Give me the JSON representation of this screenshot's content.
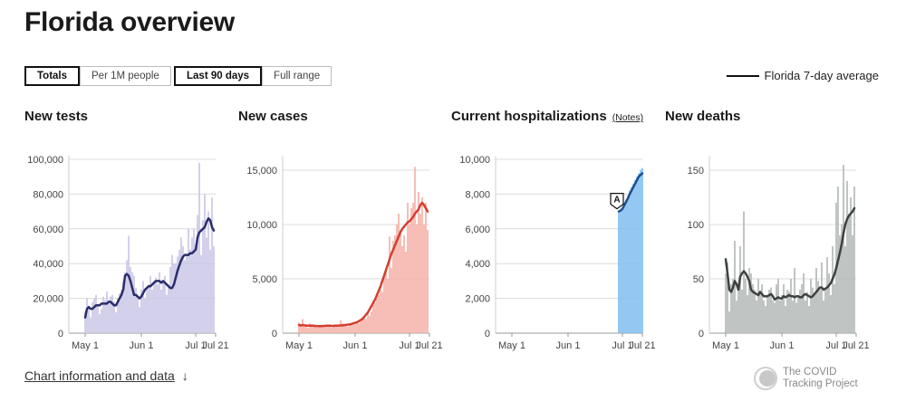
{
  "page": {
    "title": "Florida overview",
    "toggles_metric": [
      "Totals",
      "Per 1M people"
    ],
    "toggles_range": [
      "Last 90 days",
      "Full range"
    ],
    "active_metric": "Totals",
    "active_range": "Last 90 days",
    "legend_label": "Florida 7-day average",
    "chart_info_link": "Chart information and data",
    "chart_info_arrow": "↓",
    "logo_text_line1": "The COVID",
    "logo_text_line2": "Tracking Project",
    "notes_label": "(Notes)",
    "annotation_marker": "A"
  },
  "chart_data": [
    {
      "type": "bar",
      "title": "New tests",
      "color_bars": "#c9c7e6",
      "color_line": "#2b2d6b",
      "x_ticks": [
        "May 1",
        "Jun 1",
        "Jul 1",
        "Jul 21"
      ],
      "y_ticks": [
        "0",
        "20,000",
        "40,000",
        "60,000",
        "80,000",
        "100,000"
      ],
      "ylim": [
        0,
        100000
      ],
      "daily_bars": [
        12000,
        20000,
        15000,
        9000,
        18000,
        20000,
        22000,
        16000,
        11000,
        14000,
        21000,
        19000,
        24000,
        17000,
        21000,
        22000,
        18000,
        12000,
        20000,
        23000,
        25000,
        30000,
        35000,
        42000,
        56000,
        38000,
        35000,
        33000,
        26000,
        20000,
        15000,
        25000,
        30000,
        20000,
        26000,
        28000,
        33000,
        25000,
        30000,
        32000,
        28000,
        35000,
        25000,
        30000,
        33000,
        22000,
        28000,
        38000,
        45000,
        40000,
        40000,
        44000,
        48000,
        55000,
        50000,
        42000,
        45000,
        60000,
        48000,
        55000,
        60000,
        50000,
        68000,
        98000,
        45000,
        65000,
        80000,
        55000,
        70000,
        48000,
        78000,
        50000
      ],
      "avg_line": [
        9000,
        14000,
        15000,
        14000,
        14000,
        15000,
        16000,
        16000,
        16000,
        17000,
        17000,
        17000,
        17000,
        18000,
        18000,
        17000,
        16000,
        16000,
        18000,
        20000,
        22000,
        25000,
        33000,
        34000,
        33000,
        30000,
        26000,
        22000,
        22000,
        21000,
        20000,
        21000,
        23000,
        25000,
        26000,
        27000,
        27000,
        28000,
        29000,
        30000,
        30000,
        30000,
        29000,
        30000,
        29000,
        28000,
        27000,
        26000,
        26000,
        28000,
        32000,
        36000,
        39000,
        42000,
        44000,
        45000,
        45000,
        45000,
        46000,
        46000,
        47000,
        48000,
        55000,
        58000,
        59000,
        60000,
        61000,
        64000,
        66000,
        65000,
        61000,
        59000
      ]
    },
    {
      "type": "bar",
      "title": "New cases",
      "color_bars": "#f4b1a8",
      "color_line": "#d33f2f",
      "x_ticks": [
        "May 1",
        "Jun 1",
        "Jul 1",
        "Jul 21"
      ],
      "y_ticks": [
        "0",
        "5,000",
        "10,000",
        "15,000"
      ],
      "ylim": [
        0,
        16000
      ],
      "daily_bars": [
        1000,
        600,
        1300,
        800,
        700,
        500,
        900,
        700,
        600,
        800,
        500,
        700,
        650,
        600,
        700,
        750,
        800,
        600,
        500,
        700,
        800,
        600,
        750,
        1200,
        900,
        700,
        800,
        600,
        750,
        900,
        1000,
        800,
        1100,
        900,
        1100,
        1500,
        1400,
        1300,
        1800,
        1600,
        2000,
        2600,
        2800,
        3200,
        3500,
        4000,
        3800,
        5500,
        6000,
        5000,
        8900,
        6000,
        8500,
        9000,
        10000,
        11000,
        9500,
        8000,
        9000,
        7500,
        12000,
        10000,
        11500,
        12000,
        15300,
        10000,
        13000,
        11000,
        12500,
        10000,
        12000,
        9500
      ],
      "avg_line": [
        750,
        700,
        750,
        720,
        700,
        680,
        690,
        700,
        680,
        660,
        650,
        650,
        650,
        660,
        670,
        680,
        690,
        680,
        670,
        670,
        680,
        690,
        700,
        710,
        720,
        740,
        760,
        780,
        800,
        850,
        900,
        950,
        1000,
        1100,
        1200,
        1300,
        1500,
        1700,
        1900,
        2200,
        2500,
        2800,
        3100,
        3500,
        3900,
        4300,
        4800,
        5300,
        5800,
        6300,
        6800,
        7300,
        7700,
        8100,
        8500,
        8900,
        9300,
        9600,
        9800,
        10000,
        10200,
        10300,
        10500,
        10700,
        11000,
        11200,
        11400,
        11800,
        12000,
        11800,
        11500,
        11200
      ]
    },
    {
      "type": "bar",
      "title": "Current hospitalizations",
      "color_bars": "#7fbef0",
      "color_line": "#1f4f8f",
      "x_ticks": [
        "May 1",
        "Jun 1",
        "Jul 1",
        "Jul 21"
      ],
      "y_ticks": [
        "0",
        "2,000",
        "4,000",
        "6,000",
        "8,000",
        "10,000"
      ],
      "ylim": [
        0,
        10000
      ],
      "daily_bars": [
        7000,
        7100,
        7200,
        7500,
        7700,
        7900,
        8200,
        8400,
        8600,
        8800,
        9000,
        9200,
        9400,
        9500
      ],
      "avg_line": [
        7000,
        7050,
        7150,
        7350,
        7550,
        7750,
        8000,
        8200,
        8400,
        8600,
        8800,
        9000,
        9100,
        9200
      ]
    },
    {
      "type": "bar",
      "title": "New deaths",
      "color_bars": "#b4bab9",
      "color_line": "#3e4142",
      "x_ticks": [
        "May 1",
        "Jun 1",
        "Jul 1",
        "Jul 21"
      ],
      "y_ticks": [
        "0",
        "50",
        "100",
        "150"
      ],
      "ylim": [
        0,
        160
      ],
      "daily_bars": [
        55,
        65,
        20,
        45,
        50,
        85,
        30,
        45,
        80,
        40,
        112,
        50,
        35,
        60,
        55,
        45,
        40,
        30,
        50,
        38,
        45,
        30,
        25,
        35,
        40,
        42,
        30,
        28,
        45,
        50,
        30,
        35,
        45,
        25,
        40,
        38,
        50,
        30,
        60,
        28,
        35,
        40,
        45,
        55,
        30,
        38,
        25,
        50,
        42,
        35,
        60,
        48,
        40,
        65,
        30,
        40,
        70,
        55,
        35,
        80,
        45,
        120,
        135,
        90,
        100,
        155,
        80,
        140,
        110,
        125,
        90,
        135
      ],
      "avg_line": [
        68,
        55,
        40,
        38,
        42,
        48,
        45,
        40,
        52,
        55,
        57,
        55,
        52,
        48,
        40,
        38,
        37,
        36,
        35,
        38,
        36,
        34,
        34,
        34,
        35,
        36,
        34,
        31,
        32,
        33,
        32,
        32,
        34,
        33,
        34,
        35,
        34,
        34,
        33,
        34,
        34,
        33,
        33,
        35,
        36,
        35,
        34,
        33,
        34,
        36,
        38,
        40,
        42,
        42,
        40,
        41,
        42,
        44,
        46,
        50,
        54,
        60,
        67,
        74,
        82,
        92,
        100,
        105,
        108,
        110,
        112,
        115
      ]
    }
  ]
}
